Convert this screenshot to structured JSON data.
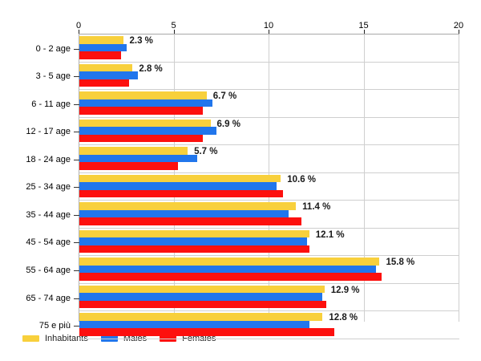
{
  "chart_data": {
    "type": "bar",
    "orientation": "horizontal",
    "title": "",
    "xlabel": "",
    "ylabel": "",
    "x_axis_position": "top",
    "xlim": [
      0,
      20
    ],
    "x_ticks": [
      "0",
      "5",
      "10",
      "15",
      "20"
    ],
    "x_tick_values": [
      0,
      5,
      10,
      15,
      20
    ],
    "grid": true,
    "legend_position": "bottom",
    "categories": [
      "0 - 2 age",
      "3 - 5 age",
      "6 - 11 age",
      "12 - 17 age",
      "18 - 24 age",
      "25 - 34 age",
      "35 - 44 age",
      "45 - 54 age",
      "55 - 64 age",
      "65 - 74 age",
      "75 e più"
    ],
    "series": [
      {
        "name": "Inhabitants",
        "color": "#F8D03C",
        "values": [
          2.3,
          2.8,
          6.7,
          6.9,
          5.7,
          10.6,
          11.4,
          12.1,
          15.8,
          12.9,
          12.8
        ]
      },
      {
        "name": "Males",
        "color": "#2176EC",
        "values": [
          2.5,
          3.1,
          7.0,
          7.2,
          6.2,
          10.4,
          11.0,
          12.0,
          15.6,
          12.8,
          12.1
        ]
      },
      {
        "name": "Females",
        "color": "#FD100E",
        "values": [
          2.2,
          2.6,
          6.5,
          6.5,
          5.2,
          10.7,
          11.7,
          12.1,
          15.9,
          13.0,
          13.4
        ]
      }
    ],
    "bar_labels": [
      "2.3 %",
      "2.8 %",
      "6.7 %",
      "6.9 %",
      "5.7 %",
      "10.6 %",
      "11.4 %",
      "12.1 %",
      "15.8 %",
      "12.9 %",
      "12.8 %"
    ],
    "colors": {
      "background": "#ffffff",
      "grid_line": "#cfcfcf",
      "axis_line": "#a8a8a8",
      "tick_mark": "#222222",
      "text": "#000000"
    }
  }
}
